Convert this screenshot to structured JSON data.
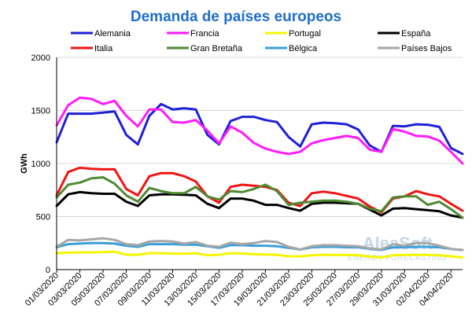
{
  "chart_data": {
    "type": "line",
    "title": "Demanda de países europeos",
    "ylabel": "GWh",
    "xlabel": "",
    "ylim": [
      0,
      2000
    ],
    "yticks": [
      0,
      500,
      1000,
      1500,
      2000
    ],
    "grid": true,
    "legend_position": "top",
    "x": [
      "01/03/2020",
      "02/03/2020",
      "03/03/2020",
      "04/03/2020",
      "05/03/2020",
      "06/03/2020",
      "07/03/2020",
      "08/03/2020",
      "09/03/2020",
      "10/03/2020",
      "11/03/2020",
      "12/03/2020",
      "13/03/2020",
      "14/03/2020",
      "15/03/2020",
      "16/03/2020",
      "17/03/2020",
      "18/03/2020",
      "19/03/2020",
      "20/03/2020",
      "21/03/2020",
      "22/03/2020",
      "23/03/2020",
      "24/03/2020",
      "25/03/2020",
      "26/03/2020",
      "27/03/2020",
      "28/03/2020",
      "29/03/2020",
      "30/03/2020",
      "31/03/2020",
      "01/04/2020",
      "02/04/2020",
      "03/04/2020",
      "04/04/2020",
      "05/04/2020"
    ],
    "xtick_labels": [
      "01/03/2020",
      "03/03/2020",
      "05/03/2020",
      "07/03/2020",
      "09/03/2020",
      "11/03/2020",
      "13/03/2020",
      "15/03/2020",
      "17/03/2020",
      "19/03/2020",
      "21/03/2020",
      "23/03/2020",
      "25/03/2020",
      "27/03/2020",
      "29/03/2020",
      "31/03/2020",
      "02/04/2020",
      "04/04/2020"
    ],
    "series": [
      {
        "name": "Alemania",
        "color": "#1f1fd6",
        "values": [
          1200,
          1470,
          1470,
          1470,
          1480,
          1490,
          1270,
          1180,
          1450,
          1560,
          1510,
          1520,
          1510,
          1270,
          1180,
          1400,
          1440,
          1440,
          1410,
          1390,
          1250,
          1160,
          1370,
          1385,
          1380,
          1370,
          1320,
          1170,
          1110,
          1355,
          1350,
          1370,
          1365,
          1345,
          1145,
          1090
        ]
      },
      {
        "name": "Francia",
        "color": "#ff1aff",
        "values": [
          1360,
          1550,
          1620,
          1610,
          1560,
          1590,
          1450,
          1350,
          1510,
          1510,
          1390,
          1385,
          1410,
          1310,
          1190,
          1350,
          1290,
          1195,
          1140,
          1110,
          1090,
          1110,
          1190,
          1220,
          1240,
          1260,
          1240,
          1130,
          1110,
          1325,
          1300,
          1260,
          1255,
          1215,
          1110,
          1000
        ]
      },
      {
        "name": "Portugal",
        "color": "#f5f500",
        "values": [
          155,
          160,
          162,
          162,
          165,
          168,
          140,
          140,
          155,
          155,
          150,
          150,
          155,
          135,
          140,
          155,
          152,
          145,
          142,
          140,
          125,
          125,
          135,
          140,
          138,
          138,
          135,
          122,
          115,
          135,
          138,
          140,
          138,
          135,
          125,
          115
        ]
      },
      {
        "name": "España",
        "color": "#000000",
        "values": [
          600,
          710,
          730,
          720,
          715,
          715,
          640,
          600,
          700,
          710,
          710,
          705,
          700,
          620,
          580,
          670,
          670,
          650,
          610,
          610,
          580,
          555,
          620,
          630,
          630,
          625,
          620,
          565,
          510,
          575,
          580,
          570,
          560,
          550,
          510,
          490
        ]
      },
      {
        "name": "Italia",
        "color": "#f01414",
        "values": [
          700,
          920,
          960,
          950,
          945,
          945,
          760,
          700,
          880,
          910,
          910,
          880,
          830,
          690,
          630,
          780,
          800,
          790,
          780,
          750,
          630,
          600,
          720,
          735,
          720,
          695,
          670,
          595,
          540,
          670,
          690,
          740,
          710,
          690,
          620,
          555
        ]
      },
      {
        "name": "Gran Bretaña",
        "color": "#4e8a32",
        "values": [
          680,
          800,
          820,
          860,
          870,
          810,
          700,
          640,
          770,
          740,
          720,
          720,
          780,
          690,
          660,
          740,
          730,
          760,
          800,
          740,
          610,
          630,
          640,
          650,
          650,
          640,
          620,
          575,
          550,
          680,
          690,
          690,
          610,
          640,
          570,
          490
        ]
      },
      {
        "name": "Bélgica",
        "color": "#3aa0d8",
        "values": [
          210,
          240,
          245,
          250,
          250,
          245,
          225,
          215,
          240,
          240,
          240,
          235,
          235,
          220,
          205,
          230,
          230,
          225,
          225,
          220,
          205,
          190,
          210,
          215,
          215,
          210,
          210,
          195,
          185,
          210,
          210,
          215,
          215,
          210,
          195,
          185
        ]
      },
      {
        "name": "Países Bajos",
        "color": "#a6a6a6",
        "values": [
          215,
          280,
          275,
          285,
          295,
          280,
          240,
          230,
          265,
          270,
          265,
          245,
          260,
          225,
          215,
          255,
          240,
          250,
          270,
          260,
          215,
          190,
          220,
          230,
          230,
          225,
          220,
          200,
          190,
          240,
          225,
          250,
          250,
          225,
          195,
          185
        ]
      }
    ]
  },
  "watermark": {
    "brand": "AleaSoft",
    "tagline": "ENERGY FORECASTING"
  },
  "colors": {
    "title": "#1f6ec8",
    "grid": "#d9d9d9",
    "axis": "#000000",
    "watermark": "#c7d6e8"
  }
}
